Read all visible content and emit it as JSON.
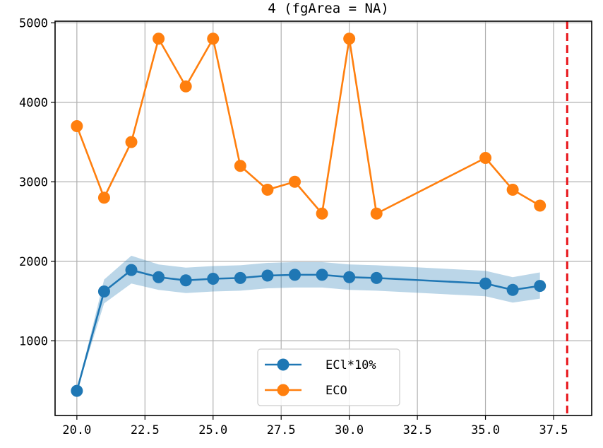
{
  "chart_data": {
    "type": "line",
    "title": "4 (fgArea = NA)",
    "xlabel": "",
    "ylabel": "",
    "xlim": [
      19.2,
      38.9
    ],
    "ylim": [
      60,
      5020
    ],
    "x_ticks": [
      20.0,
      22.5,
      25.0,
      27.5,
      30.0,
      32.5,
      35.0,
      37.5
    ],
    "x_tick_labels": [
      "20.0",
      "22.5",
      "25.0",
      "27.5",
      "30.0",
      "32.5",
      "35.0",
      "37.5"
    ],
    "y_ticks": [
      1000,
      2000,
      3000,
      4000,
      5000
    ],
    "y_tick_labels": [
      "1000",
      "2000",
      "3000",
      "4000",
      "5000"
    ],
    "grid": true,
    "legend_position": "lower-center",
    "vertical_line": {
      "x": 38.0,
      "color": "#e8141a",
      "style": "dashed"
    },
    "series": [
      {
        "name": "ECl*10%",
        "color": "#1f77b4",
        "band_color": "#1f77b4",
        "x": [
          20,
          21,
          22,
          23,
          24,
          25,
          26,
          27,
          28,
          29,
          30,
          31,
          35,
          36,
          37
        ],
        "values": [
          370,
          1620,
          1890,
          1800,
          1760,
          1780,
          1790,
          1820,
          1830,
          1830,
          1800,
          1790,
          1720,
          1640,
          1690
        ],
        "band_upper": [
          370,
          1770,
          2070,
          1960,
          1920,
          1940,
          1950,
          1980,
          1990,
          1990,
          1960,
          1950,
          1880,
          1800,
          1860
        ],
        "band_lower": [
          370,
          1470,
          1720,
          1640,
          1600,
          1620,
          1630,
          1660,
          1670,
          1670,
          1640,
          1630,
          1560,
          1480,
          1530
        ]
      },
      {
        "name": "ECO",
        "color": "#ff7f0e",
        "x": [
          20,
          21,
          22,
          23,
          24,
          25,
          26,
          27,
          28,
          29,
          30,
          31,
          35,
          36,
          37
        ],
        "values": [
          3700,
          2800,
          3500,
          4800,
          4200,
          4800,
          3200,
          2900,
          3000,
          2600,
          4800,
          2600,
          3300,
          2900,
          2700
        ]
      }
    ]
  }
}
